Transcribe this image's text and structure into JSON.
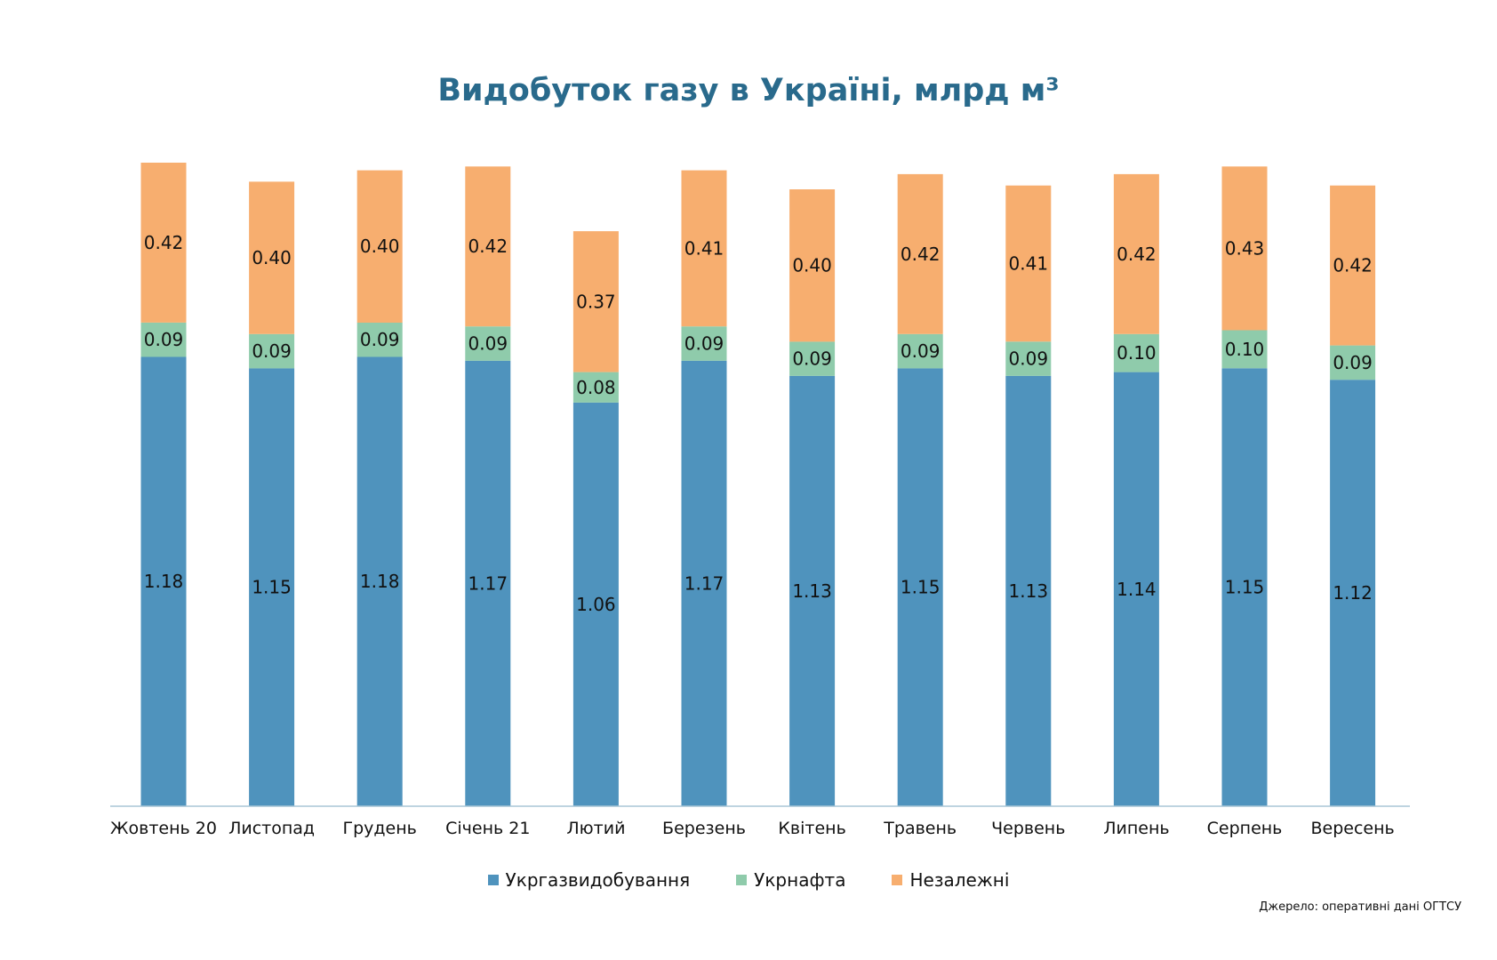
{
  "chart_data": {
    "type": "bar",
    "stacked": true,
    "title": "Видобуток газу в Україні, млрд м³",
    "categories": [
      "Жовтень 20",
      "Листопад",
      "Грудень",
      "Січень 21",
      "Лютий",
      "Березень",
      "Квітень",
      "Травень",
      "Червень",
      "Липень",
      "Серпень",
      "Вересень"
    ],
    "series": [
      {
        "name": "Укргазвидобування",
        "color": "#4f93bd",
        "values": [
          1.18,
          1.15,
          1.18,
          1.17,
          1.06,
          1.17,
          1.13,
          1.15,
          1.13,
          1.14,
          1.15,
          1.12
        ],
        "labels": [
          "1.18",
          "1.15",
          "1.18",
          "1.17",
          "1.06",
          "1.17",
          "1.13",
          "1.15",
          "1.13",
          "1.14",
          "1.15",
          "1.12"
        ]
      },
      {
        "name": "Укрнафта",
        "color": "#8fcbab",
        "values": [
          0.09,
          0.09,
          0.09,
          0.09,
          0.08,
          0.09,
          0.09,
          0.09,
          0.09,
          0.1,
          0.1,
          0.09
        ],
        "labels": [
          "0.09",
          "0.09",
          "0.09",
          "0.09",
          "0.08",
          "0.09",
          "0.09",
          "0.09",
          "0.09",
          "0.10",
          "0.10",
          "0.09"
        ]
      },
      {
        "name": "Незалежні",
        "color": "#f7ae6f",
        "values": [
          0.42,
          0.4,
          0.4,
          0.42,
          0.37,
          0.41,
          0.4,
          0.42,
          0.41,
          0.42,
          0.43,
          0.42
        ],
        "labels": [
          "0.42",
          "0.40",
          "0.40",
          "0.42",
          "0.37",
          "0.41",
          "0.40",
          "0.42",
          "0.41",
          "0.42",
          "0.43",
          "0.42"
        ]
      }
    ],
    "ylim": [
      0,
      1.69
    ],
    "xlabel": "",
    "ylabel": "",
    "grid": false,
    "legend_position": "bottom",
    "axis_color": "#a9c6d6",
    "source": "Джерело: оперативні дані ОГТСУ"
  }
}
